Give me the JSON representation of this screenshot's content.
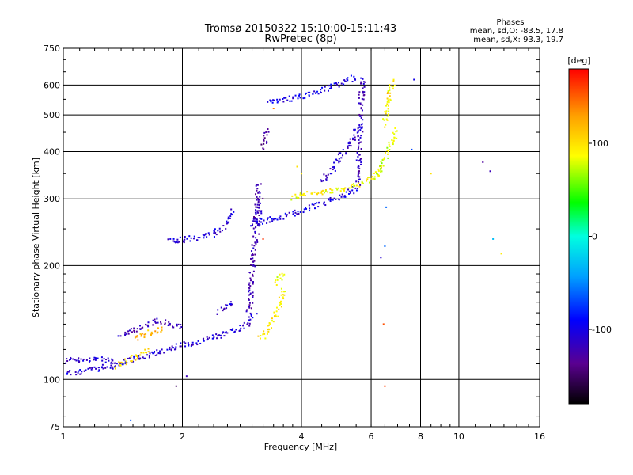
{
  "chart_data": {
    "type": "scatter",
    "title": "Tromsø 20150322 15:10:00-15:11:43",
    "subtitle": "RwPretec (8p)",
    "xlabel": "Frequency [MHz]",
    "ylabel": "Stationary phase Virtual Height [km]",
    "x_scale": "log",
    "y_scale": "log",
    "xlim": [
      1,
      16
    ],
    "ylim": [
      75,
      750
    ],
    "x_ticks": [
      1,
      2,
      4,
      6,
      8,
      10,
      16
    ],
    "x_tick_labels": [
      "1",
      "2",
      "4",
      "6",
      "8",
      "10",
      "16"
    ],
    "y_ticks": [
      75,
      100,
      200,
      300,
      400,
      500,
      600,
      750
    ],
    "y_tick_labels": [
      "75",
      "100",
      "200",
      "300",
      "400",
      "500",
      "600",
      "750"
    ],
    "grid": true,
    "phase_stats": {
      "heading": "Phases",
      "o_line": "mean, sd,O: -83.5, 17.8",
      "x_line": "mean, sd,X:  93.3, 19.7"
    },
    "colorbar": {
      "label": "[deg]",
      "range": [
        -180,
        180
      ],
      "ticks": [
        100,
        0,
        -100
      ],
      "tick_labels": [
        "100",
        "0",
        "-100"
      ]
    },
    "traces": [
      {
        "x": [
          1.0,
          1.12,
          1.25,
          1.4,
          1.55,
          1.7,
          1.85,
          2.0,
          2.2,
          2.45,
          2.7,
          2.95,
          3.05
        ],
        "y": [
          104,
          105,
          107,
          110,
          114,
          117,
          120,
          123,
          126,
          130,
          135,
          140,
          150
        ],
        "phase": -108
      },
      {
        "x": [
          1.0,
          1.1,
          1.2,
          1.3,
          1.42
        ],
        "y": [
          112,
          113,
          113,
          112,
          110
        ],
        "phase": -112
      },
      {
        "x": [
          1.4,
          1.55,
          1.65,
          1.75,
          1.85,
          2.0
        ],
        "y": [
          130,
          136,
          140,
          143,
          140,
          137
        ],
        "phase": -120
      },
      {
        "x": [
          2.45,
          2.55,
          2.62,
          2.7
        ],
        "y": [
          150,
          156,
          158,
          155
        ],
        "phase": -110
      },
      {
        "x": [
          2.95,
          2.98,
          3.0,
          3.02,
          3.05,
          3.08,
          3.12,
          3.15
        ],
        "y": [
          150,
          170,
          190,
          210,
          230,
          250,
          275,
          300
        ],
        "phase": -122
      },
      {
        "x": [
          3.05,
          3.08,
          3.1,
          3.12
        ],
        "y": [
          255,
          280,
          305,
          335
        ],
        "phase": -125
      },
      {
        "x": [
          1.85,
          2.0,
          2.2,
          2.4,
          2.55,
          2.62,
          2.68
        ],
        "y": [
          233,
          234,
          237,
          242,
          252,
          265,
          280
        ],
        "phase": -105
      },
      {
        "x": [
          3.0,
          3.3,
          3.7,
          4.1,
          4.5,
          5.0,
          5.4,
          5.6
        ],
        "y": [
          258,
          264,
          272,
          282,
          292,
          303,
          315,
          325
        ],
        "phase": -103
      },
      {
        "x": [
          5.58,
          5.6,
          5.62,
          5.64,
          5.66,
          5.68,
          5.7
        ],
        "y": [
          330,
          370,
          420,
          470,
          520,
          570,
          630
        ],
        "phase": -118
      },
      {
        "x": [
          4.5,
          4.8,
          5.1,
          5.4,
          5.6
        ],
        "y": [
          330,
          360,
          395,
          430,
          470
        ],
        "phase": -112
      },
      {
        "x": [
          3.3,
          3.6,
          4.0,
          4.4,
          4.8,
          5.2,
          5.5
        ],
        "y": [
          540,
          548,
          560,
          575,
          595,
          615,
          630
        ],
        "phase": -100
      },
      {
        "x": [
          3.2,
          3.22,
          3.25,
          3.28
        ],
        "y": [
          410,
          425,
          440,
          460
        ],
        "phase": -130
      },
      {
        "x": [
          3.15,
          3.25,
          3.35,
          3.5,
          3.62
        ],
        "y": [
          128,
          132,
          140,
          155,
          175
        ],
        "phase": 95
      },
      {
        "x": [
          3.45,
          3.55,
          3.62
        ],
        "y": [
          180,
          188,
          192
        ],
        "phase": 88
      },
      {
        "x": [
          3.8,
          4.1,
          4.5,
          4.9,
          5.3,
          5.7,
          6.1,
          6.4
        ],
        "y": [
          303,
          308,
          312,
          316,
          322,
          330,
          345,
          365
        ],
        "phase": 90
      },
      {
        "x": [
          6.2,
          6.4,
          6.6,
          6.8,
          7.0
        ],
        "y": [
          345,
          370,
          400,
          430,
          460
        ],
        "phase": 75
      },
      {
        "x": [
          6.5,
          6.6,
          6.7,
          6.8
        ],
        "y": [
          470,
          520,
          570,
          620
        ],
        "phase": 95
      },
      {
        "x": [
          1.35,
          1.45,
          1.55,
          1.65
        ],
        "y": [
          108,
          112,
          116,
          120
        ],
        "phase": 105
      },
      {
        "x": [
          1.5,
          1.6,
          1.7,
          1.8
        ],
        "y": [
          128,
          132,
          134,
          136
        ],
        "phase": 118
      }
    ],
    "points": [
      {
        "x": 6.45,
        "y": 140,
        "phase": 155
      },
      {
        "x": 6.5,
        "y": 96,
        "phase": 160
      },
      {
        "x": 3.2,
        "y": 235,
        "phase": 165
      },
      {
        "x": 6.5,
        "y": 225,
        "phase": -60
      },
      {
        "x": 6.35,
        "y": 210,
        "phase": -110
      },
      {
        "x": 6.55,
        "y": 285,
        "phase": -60
      },
      {
        "x": 11.5,
        "y": 375,
        "phase": -130
      },
      {
        "x": 12.0,
        "y": 355,
        "phase": -120
      },
      {
        "x": 12.8,
        "y": 215,
        "phase": 95
      },
      {
        "x": 12.2,
        "y": 235,
        "phase": -30
      },
      {
        "x": 8.5,
        "y": 350,
        "phase": 100
      },
      {
        "x": 7.6,
        "y": 405,
        "phase": -70
      },
      {
        "x": 1.48,
        "y": 78,
        "phase": -65
      },
      {
        "x": 1.93,
        "y": 96,
        "phase": -150
      },
      {
        "x": 2.05,
        "y": 102,
        "phase": -120
      },
      {
        "x": 4.0,
        "y": 350,
        "phase": 95
      },
      {
        "x": 3.9,
        "y": 365,
        "phase": 100
      },
      {
        "x": 7.7,
        "y": 620,
        "phase": -100
      },
      {
        "x": 6.6,
        "y": 570,
        "phase": 130
      },
      {
        "x": 3.4,
        "y": 520,
        "phase": 140
      }
    ]
  }
}
